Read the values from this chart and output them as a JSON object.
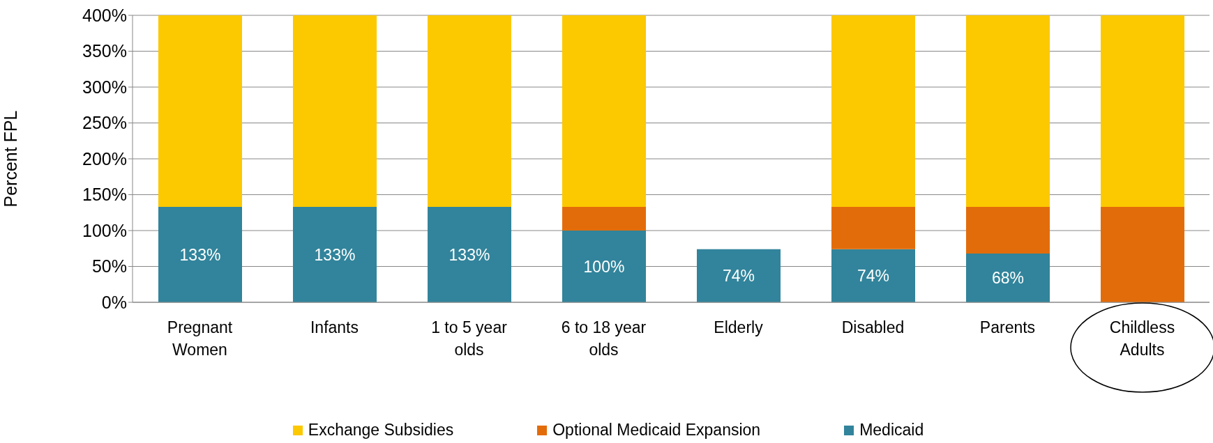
{
  "chart_data": {
    "type": "bar",
    "stacked": true,
    "ylabel": "Percent FPL",
    "categories": [
      "Pregnant Women",
      "Infants",
      "1 to 5 year olds",
      "6 to 18 year olds",
      "Elderly",
      "Disabled",
      "Parents",
      "Childless Adults"
    ],
    "series": [
      {
        "name": "Medicaid",
        "color": "#31849b",
        "values": [
          133,
          133,
          133,
          100,
          74,
          74,
          68,
          0
        ],
        "value_labels": [
          "133%",
          "133%",
          "133%",
          "100%",
          "74%",
          "74%",
          "68%",
          null
        ]
      },
      {
        "name": "Optional Medicaid Expansion",
        "color": "#e36c0a",
        "values": [
          0,
          0,
          0,
          33,
          0,
          59,
          65,
          133
        ]
      },
      {
        "name": "Exchange Subsidies",
        "color": "#fcc800",
        "values": [
          267,
          267,
          267,
          267,
          0,
          267,
          267,
          267
        ]
      }
    ],
    "ylim": [
      0,
      400
    ],
    "yticks": [
      {
        "value": 0,
        "label": "0%"
      },
      {
        "value": 50,
        "label": "50%"
      },
      {
        "value": 100,
        "label": "100%"
      },
      {
        "value": 150,
        "label": "150%"
      },
      {
        "value": 200,
        "label": "200%"
      },
      {
        "value": 250,
        "label": "250%"
      },
      {
        "value": 300,
        "label": "300%"
      },
      {
        "value": 350,
        "label": "350%"
      },
      {
        "value": 400,
        "label": "400%"
      }
    ],
    "grid": "y",
    "legend": "bottom"
  }
}
